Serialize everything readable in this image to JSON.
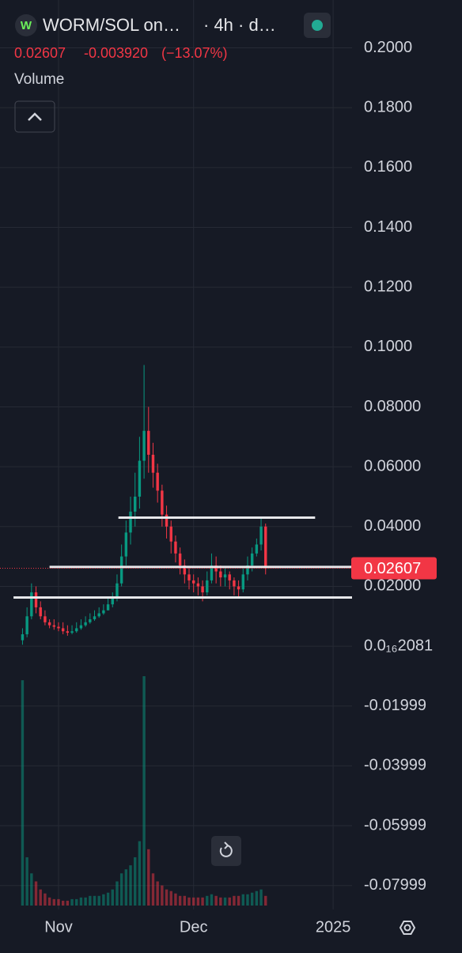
{
  "header": {
    "title": "WORM/SOL on…",
    "interval": "· 4h · d…",
    "change": "-0.003920",
    "change_percent": "(−13.07%)",
    "volume_label": "Volume"
  },
  "chart_data": {
    "type": "candlestick",
    "last_price": 0.02607,
    "up_color": "#089981",
    "down_color": "#f23645",
    "grid": true,
    "x": [
      -8,
      -7,
      -6,
      -5,
      -4,
      -3,
      -2,
      -1,
      0,
      1,
      2,
      3,
      4,
      5,
      6,
      7,
      8,
      9,
      10,
      11,
      12,
      13,
      14,
      15,
      16,
      17,
      18,
      19,
      20,
      21,
      22,
      23,
      24,
      25,
      26,
      27,
      28,
      29,
      30,
      31,
      32,
      33,
      34,
      35,
      36,
      37,
      38,
      39,
      40,
      41,
      42,
      43,
      44,
      45,
      46
    ],
    "open": [
      0.002,
      0.004,
      0.01,
      0.018,
      0.013,
      0.01,
      0.008,
      0.007,
      0.0065,
      0.006,
      0.005,
      0.0045,
      0.005,
      0.006,
      0.007,
      0.008,
      0.009,
      0.01,
      0.011,
      0.012,
      0.014,
      0.016,
      0.021,
      0.03,
      0.038,
      0.045,
      0.05,
      0.062,
      0.072,
      0.064,
      0.058,
      0.052,
      0.044,
      0.04,
      0.035,
      0.031,
      0.027,
      0.024,
      0.022,
      0.021,
      0.02,
      0.018,
      0.022,
      0.027,
      0.025,
      0.023,
      0.024,
      0.022,
      0.02,
      0.019,
      0.024,
      0.027,
      0.031,
      0.034,
      0.04
    ],
    "high": [
      0.006,
      0.013,
      0.021,
      0.02,
      0.015,
      0.012,
      0.009,
      0.009,
      0.008,
      0.008,
      0.007,
      0.007,
      0.008,
      0.009,
      0.01,
      0.011,
      0.012,
      0.013,
      0.014,
      0.016,
      0.018,
      0.024,
      0.034,
      0.042,
      0.05,
      0.058,
      0.07,
      0.094,
      0.08,
      0.068,
      0.061,
      0.054,
      0.047,
      0.042,
      0.037,
      0.033,
      0.029,
      0.026,
      0.024,
      0.023,
      0.022,
      0.025,
      0.031,
      0.03,
      0.027,
      0.026,
      0.025,
      0.023,
      0.022,
      0.026,
      0.03,
      0.033,
      0.036,
      0.043,
      0.041
    ],
    "low": [
      0.0005,
      0.003,
      0.009,
      0.011,
      0.009,
      0.007,
      0.006,
      0.0055,
      0.005,
      0.004,
      0.0035,
      0.004,
      0.0045,
      0.0055,
      0.0065,
      0.0075,
      0.0085,
      0.0095,
      0.0105,
      0.012,
      0.013,
      0.015,
      0.02,
      0.027,
      0.034,
      0.04,
      0.046,
      0.056,
      0.058,
      0.053,
      0.048,
      0.04,
      0.036,
      0.031,
      0.028,
      0.024,
      0.021,
      0.019,
      0.018,
      0.017,
      0.015,
      0.017,
      0.021,
      0.021,
      0.02,
      0.02,
      0.019,
      0.017,
      0.016,
      0.018,
      0.022,
      0.025,
      0.03,
      0.032,
      0.024
    ],
    "close": [
      0.004,
      0.01,
      0.018,
      0.013,
      0.01,
      0.008,
      0.007,
      0.0065,
      0.006,
      0.005,
      0.0045,
      0.005,
      0.006,
      0.007,
      0.008,
      0.009,
      0.01,
      0.011,
      0.012,
      0.014,
      0.016,
      0.021,
      0.03,
      0.038,
      0.045,
      0.05,
      0.062,
      0.072,
      0.064,
      0.058,
      0.052,
      0.044,
      0.04,
      0.035,
      0.031,
      0.027,
      0.024,
      0.022,
      0.021,
      0.02,
      0.018,
      0.022,
      0.027,
      0.025,
      0.023,
      0.024,
      0.022,
      0.02,
      0.019,
      0.024,
      0.027,
      0.031,
      0.034,
      0.04,
      0.02607
    ],
    "volume": [
      280,
      60,
      40,
      30,
      20,
      15,
      10,
      8,
      8,
      6,
      6,
      8,
      8,
      10,
      10,
      12,
      12,
      12,
      14,
      16,
      20,
      30,
      40,
      45,
      50,
      60,
      80,
      285,
      70,
      40,
      30,
      25,
      20,
      18,
      15,
      12,
      12,
      10,
      10,
      10,
      10,
      12,
      14,
      12,
      10,
      10,
      10,
      12,
      12,
      14,
      14,
      16,
      18,
      20,
      12
    ],
    "horizontal_lines": [
      {
        "value": 0.043,
        "x": [
          13.3,
          57
        ]
      },
      {
        "value": 0.0265,
        "x": [
          -2,
          65.2
        ]
      },
      {
        "value": 0.0163,
        "x": [
          -10,
          65.2
        ]
      }
    ],
    "xlim": [
      -13,
      65.2
    ],
    "ylim": [
      -0.088,
      0.216
    ],
    "xticks": [
      {
        "value": 0,
        "label": "Nov"
      },
      {
        "value": 30,
        "label": "Dec"
      },
      {
        "value": 61,
        "label": "2025"
      }
    ],
    "yticks": [
      {
        "value": 0.2,
        "label": "0.2000"
      },
      {
        "value": 0.18,
        "label": "0.1800"
      },
      {
        "value": 0.16,
        "label": "0.1600"
      },
      {
        "value": 0.14,
        "label": "0.1400"
      },
      {
        "value": 0.12,
        "label": "0.1200"
      },
      {
        "value": 0.1,
        "label": "0.1000"
      },
      {
        "value": 0.08,
        "label": "0.08000"
      },
      {
        "value": 0.06,
        "label": "0.06000"
      },
      {
        "value": 0.04,
        "label": "0.04000"
      },
      {
        "value": 0.02,
        "label": "0.02000"
      },
      {
        "value": 2.081e-17,
        "label": "0.0₁₆2081"
      },
      -0.01999,
      -0.03999,
      -0.05999,
      -0.07999
    ]
  }
}
